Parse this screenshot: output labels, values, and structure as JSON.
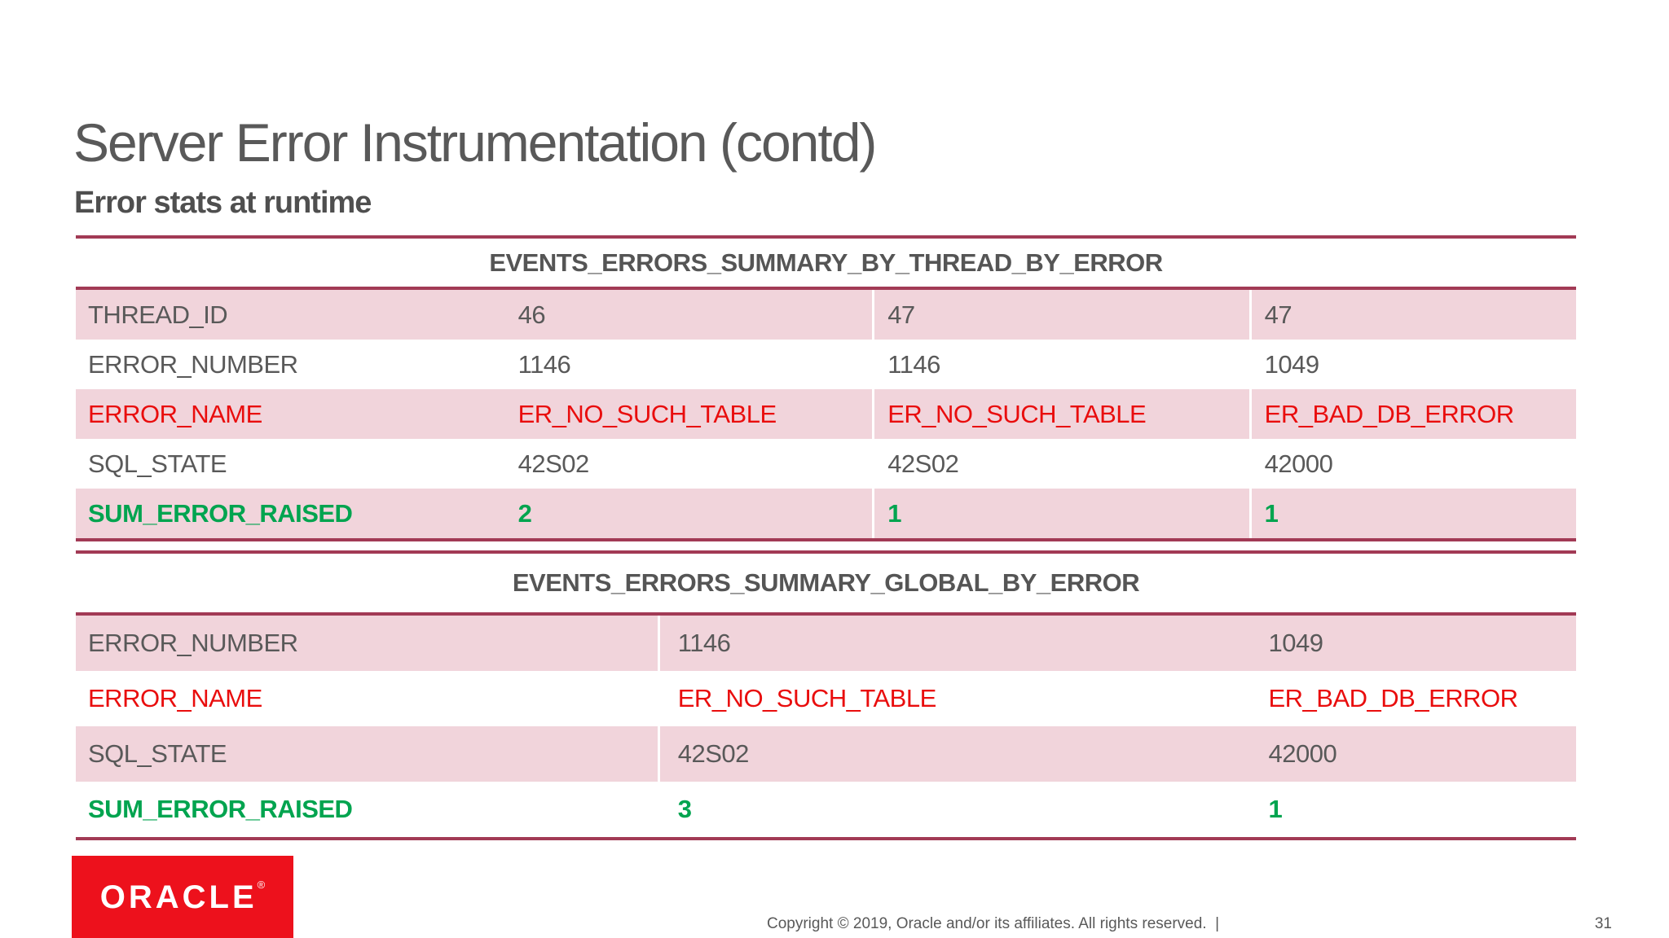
{
  "slide": {
    "title": "Server Error Instrumentation (contd)",
    "subtitle": "Error stats at runtime",
    "logo_text": "ORACLE",
    "logo_registered": "®",
    "copyright": "Copyright © 2019, Oracle and/or its affiliates. All rights reserved.  |",
    "page_number": "31"
  },
  "colors": {
    "accent_line": "#a23a55",
    "row_pink": "#f1d4db",
    "text_gray": "#595959",
    "error_red": "#e90d0d",
    "sum_green": "#00a44f",
    "logo_red": "#ed111c"
  },
  "tables": [
    {
      "title": "EVENTS_ERRORS_SUMMARY_BY_THREAD_BY_ERROR",
      "rows": [
        {
          "label": "THREAD_ID",
          "values": [
            "46",
            "47",
            "47"
          ],
          "style": "plain",
          "shade": true
        },
        {
          "label": "ERROR_NUMBER",
          "values": [
            "1146",
            "1146",
            "1049"
          ],
          "style": "plain",
          "shade": false
        },
        {
          "label": "ERROR_NAME",
          "values": [
            "ER_NO_SUCH_TABLE",
            "ER_NO_SUCH_TABLE",
            "ER_BAD_DB_ERROR"
          ],
          "style": "error",
          "shade": true
        },
        {
          "label": "SQL_STATE",
          "values": [
            "42S02",
            "42S02",
            "42000"
          ],
          "style": "plain",
          "shade": false
        },
        {
          "label": "SUM_ERROR_RAISED",
          "values": [
            "2",
            "1",
            "1"
          ],
          "style": "sum",
          "shade": true
        }
      ]
    },
    {
      "title": "EVENTS_ERRORS_SUMMARY_GLOBAL_BY_ERROR",
      "rows": [
        {
          "label": "ERROR_NUMBER",
          "values": [
            "1146",
            "1049"
          ],
          "style": "plain",
          "shade": true
        },
        {
          "label": "ERROR_NAME",
          "values": [
            "ER_NO_SUCH_TABLE",
            "ER_BAD_DB_ERROR"
          ],
          "style": "error",
          "shade": false
        },
        {
          "label": "SQL_STATE",
          "values": [
            "42S02",
            "42000"
          ],
          "style": "plain",
          "shade": true
        },
        {
          "label": "SUM_ERROR_RAISED",
          "values": [
            "3",
            "1"
          ],
          "style": "sum",
          "shade": false
        }
      ]
    }
  ]
}
